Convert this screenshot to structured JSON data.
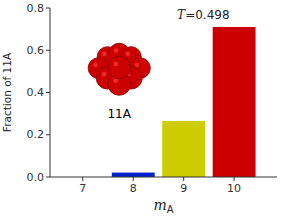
{
  "chart_data": {
    "type": "bar",
    "x": [
      7,
      8,
      9,
      10
    ],
    "values": [
      0.0,
      0.021,
      0.265,
      0.71
    ],
    "colors": [
      "#0022cc",
      "#0022cc",
      "#cccc00",
      "#cc0000"
    ],
    "xlabel": "mA",
    "ylabel": "Fraction of 11A",
    "xlim": [
      6.35,
      10.85
    ],
    "xticks": [
      7,
      8,
      9,
      10
    ],
    "ylim": [
      0,
      0.8
    ],
    "yticks": [
      {
        "value": 0,
        "label": "0.0"
      },
      0.2,
      0.4,
      0.6,
      0.8
    ],
    "annotations": [
      "T=0.498",
      "11A"
    ],
    "grid": false
  }
}
